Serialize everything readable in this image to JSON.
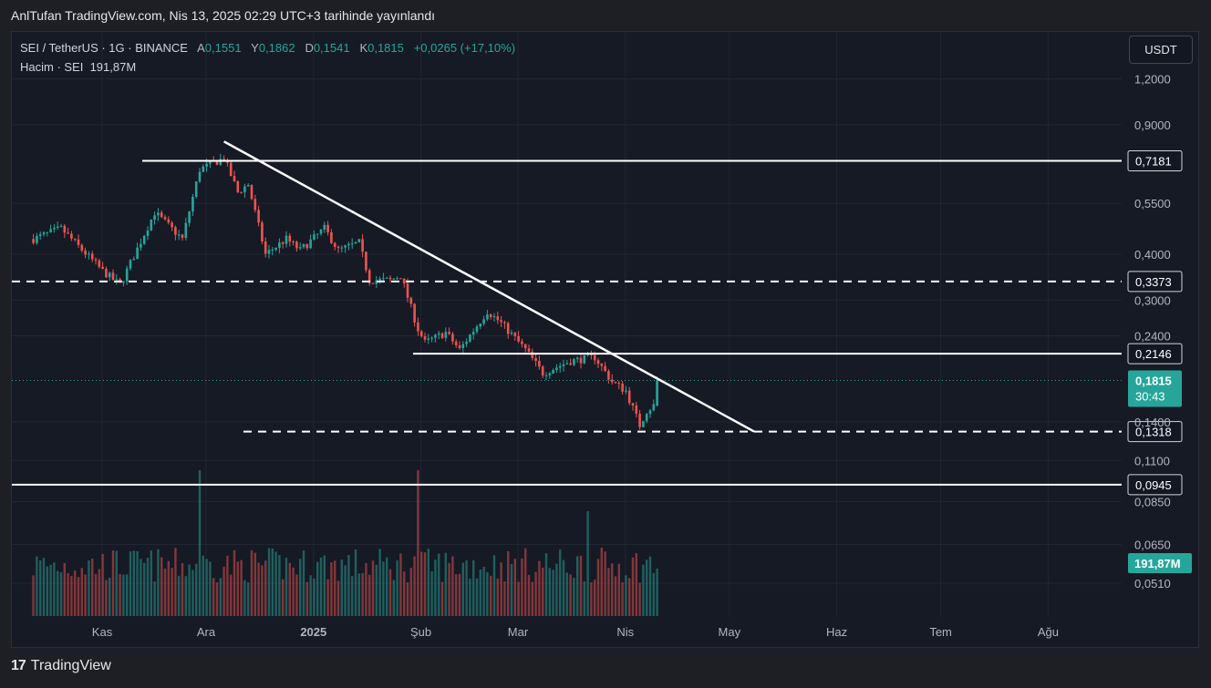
{
  "caption": "AnlTufan TradingView.com, Nis 13, 2025 02:29 UTC+3 tarihinde yayınlandı",
  "legend": {
    "symbol": "SEI / TetherUS · 1G · BINANCE",
    "open_label": "A",
    "open": "0,1551",
    "high_label": "Y",
    "high": "0,1862",
    "low_label": "D",
    "low": "0,1541",
    "close_label": "K",
    "close": "0,1815",
    "change": "+0,0265 (+17,10%)",
    "volume_label": "Hacim · SEI",
    "volume": "191,87M"
  },
  "currency_button": "USDT",
  "footer": {
    "logo": "TradingView"
  },
  "colors": {
    "up": "#26a69a",
    "down": "#ef5350",
    "background": "#161a25",
    "line": "#ffffff"
  },
  "chart_data": {
    "type": "candlestick",
    "scale": "log",
    "price_axis": [
      "1,2000",
      "0,9000",
      "0,5500",
      "0,4000",
      "0,3000",
      "0,2400",
      "0,1400",
      "0,1100",
      "0,0850",
      "0,0650",
      "0,0510"
    ],
    "time_axis": [
      "Kas",
      "Ara",
      "2025",
      "Şub",
      "Mar",
      "Nis",
      "May",
      "Haz",
      "Tem",
      "Ağu"
    ],
    "horizontal_levels": [
      {
        "label": "0,7181",
        "value": 0.7181,
        "style": "solid"
      },
      {
        "label": "0,3373",
        "value": 0.3373,
        "style": "dashed"
      },
      {
        "label": "0,2146",
        "value": 0.2146,
        "style": "solid"
      },
      {
        "label": "0,1318",
        "value": 0.1318,
        "style": "dashed"
      },
      {
        "label": "0,0945",
        "value": 0.0945,
        "style": "solid"
      }
    ],
    "trendline": {
      "from": {
        "date": "2024-12-08",
        "price": 0.81
      },
      "to": {
        "date": "2025-05-10",
        "price": 0.1318
      }
    },
    "last_price": {
      "label": "0,1815",
      "countdown": "30:43"
    },
    "volume_last": "191,87M",
    "range": {
      "start": "2024-10-14",
      "end": "2025-04-13"
    },
    "anchors": [
      [
        "2024-10-14",
        0.44
      ],
      [
        "2024-10-22",
        0.47
      ],
      [
        "2024-11-03",
        0.36
      ],
      [
        "2024-11-08",
        0.33
      ],
      [
        "2024-11-18",
        0.52
      ],
      [
        "2024-11-26",
        0.44
      ],
      [
        "2024-12-01",
        0.68
      ],
      [
        "2024-12-08",
        0.73
      ],
      [
        "2024-12-12",
        0.59
      ],
      [
        "2024-12-15",
        0.62
      ],
      [
        "2024-12-20",
        0.4
      ],
      [
        "2024-12-26",
        0.44
      ],
      [
        "2024-12-30",
        0.41
      ],
      [
        "2025-01-06",
        0.47
      ],
      [
        "2025-01-10",
        0.41
      ],
      [
        "2025-01-16",
        0.43
      ],
      [
        "2025-01-19",
        0.34
      ],
      [
        "2025-01-25",
        0.34
      ],
      [
        "2025-01-28",
        0.35
      ],
      [
        "2025-02-02",
        0.25
      ],
      [
        "2025-02-04",
        0.23
      ],
      [
        "2025-02-10",
        0.245
      ],
      [
        "2025-02-14",
        0.22
      ],
      [
        "2025-02-22",
        0.28
      ],
      [
        "2025-02-26",
        0.26
      ],
      [
        "2025-03-05",
        0.22
      ],
      [
        "2025-03-10",
        0.19
      ],
      [
        "2025-03-18",
        0.205
      ],
      [
        "2025-03-25",
        0.21
      ],
      [
        "2025-03-30",
        0.18
      ],
      [
        "2025-04-03",
        0.17
      ],
      [
        "2025-04-07",
        0.137
      ],
      [
        "2025-04-09",
        0.15
      ],
      [
        "2025-04-11",
        0.155
      ],
      [
        "2025-04-12",
        0.1815
      ]
    ]
  }
}
